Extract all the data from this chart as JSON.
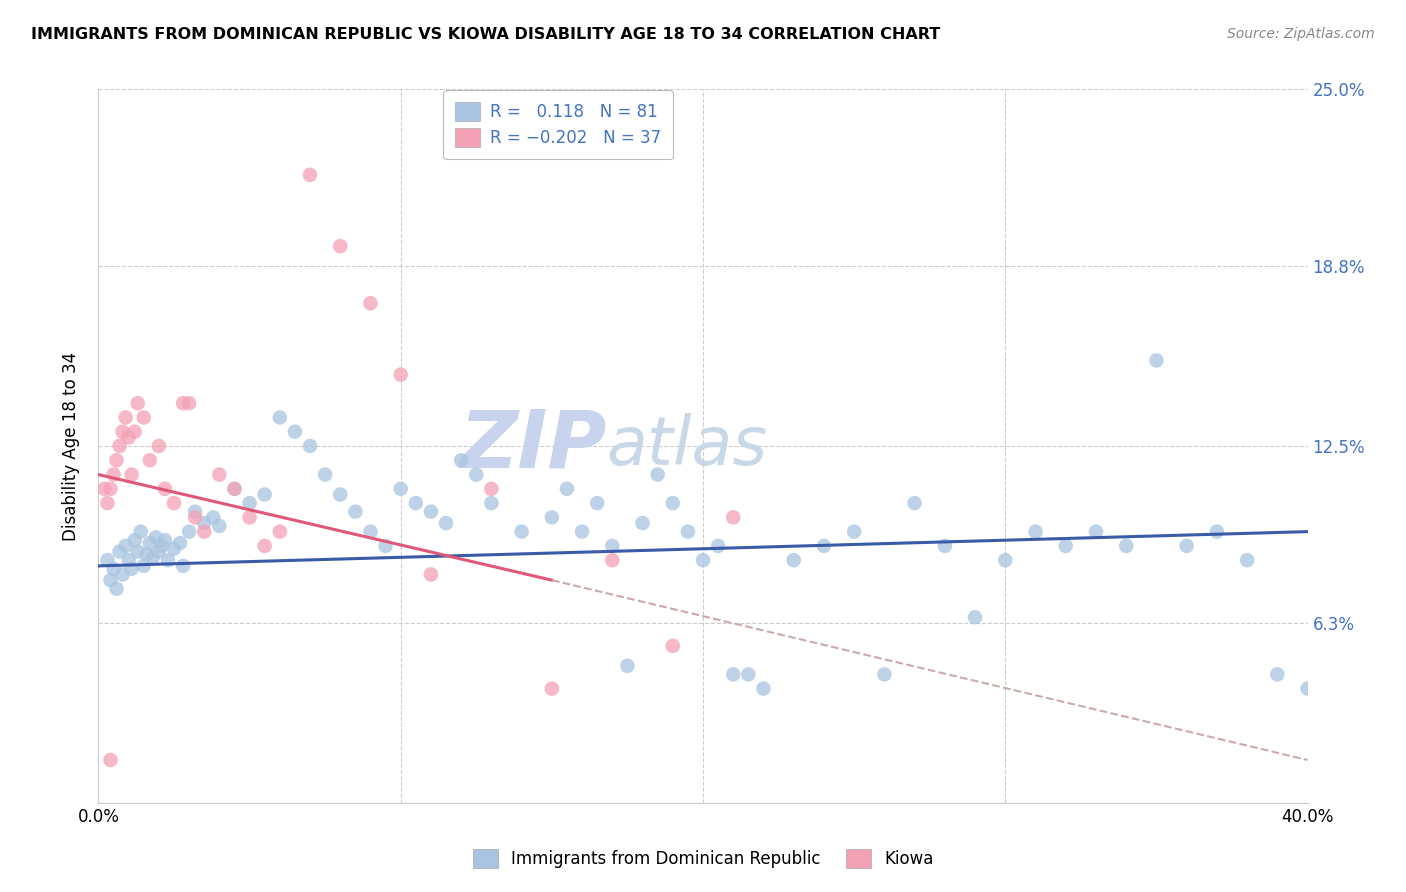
{
  "title": "IMMIGRANTS FROM DOMINICAN REPUBLIC VS KIOWA DISABILITY AGE 18 TO 34 CORRELATION CHART",
  "source": "Source: ZipAtlas.com",
  "ylabel": "Disability Age 18 to 34",
  "ytick_values": [
    0.0,
    6.3,
    12.5,
    18.8,
    25.0
  ],
  "ytick_labels": [
    "",
    "6.3%",
    "12.5%",
    "18.8%",
    "25.0%"
  ],
  "xmin": 0.0,
  "xmax": 40.0,
  "ymin": 0.0,
  "ymax": 25.0,
  "blue_R": 0.118,
  "blue_N": 81,
  "pink_R": -0.202,
  "pink_N": 37,
  "blue_color": "#a8c4e0",
  "pink_color": "#f4a0b5",
  "blue_line_color": "#3a5ca8",
  "pink_line_color": "#e05878",
  "dash_line_color": "#ccaaaa",
  "watermark_zip": "ZIP",
  "watermark_atlas": "atlas",
  "watermark_color": "#d0d8ee",
  "legend_label_blue": "Immigrants from Dominican Republic",
  "legend_label_pink": "Kiowa",
  "blue_x": [
    0.3,
    0.4,
    0.5,
    0.6,
    0.7,
    0.8,
    0.9,
    1.0,
    1.1,
    1.2,
    1.3,
    1.4,
    1.5,
    1.6,
    1.7,
    1.8,
    1.9,
    2.0,
    2.1,
    2.2,
    2.3,
    2.5,
    2.7,
    2.8,
    3.0,
    3.2,
    3.5,
    3.8,
    4.0,
    4.5,
    5.0,
    5.5,
    6.0,
    6.5,
    7.0,
    7.5,
    8.0,
    8.5,
    9.0,
    9.5,
    10.0,
    10.5,
    11.0,
    11.5,
    12.0,
    12.5,
    13.0,
    14.0,
    15.0,
    16.0,
    17.0,
    18.0,
    19.0,
    20.0,
    21.0,
    22.0,
    23.0,
    24.0,
    25.0,
    26.0,
    27.0,
    28.0,
    29.0,
    30.0,
    31.0,
    32.0,
    33.0,
    34.0,
    35.0,
    36.0,
    37.0,
    38.0,
    39.0,
    40.0,
    15.5,
    16.5,
    17.5,
    18.5,
    19.5,
    20.5,
    21.5
  ],
  "blue_y": [
    8.5,
    7.8,
    8.2,
    7.5,
    8.8,
    8.0,
    9.0,
    8.5,
    8.2,
    9.2,
    8.8,
    9.5,
    8.3,
    8.7,
    9.1,
    8.6,
    9.3,
    8.8,
    9.0,
    9.2,
    8.5,
    8.9,
    9.1,
    8.3,
    9.5,
    10.2,
    9.8,
    10.0,
    9.7,
    11.0,
    10.5,
    10.8,
    13.5,
    13.0,
    12.5,
    11.5,
    10.8,
    10.2,
    9.5,
    9.0,
    11.0,
    10.5,
    10.2,
    9.8,
    12.0,
    11.5,
    10.5,
    9.5,
    10.0,
    9.5,
    9.0,
    9.8,
    10.5,
    8.5,
    4.5,
    4.0,
    8.5,
    9.0,
    9.5,
    4.5,
    10.5,
    9.0,
    6.5,
    8.5,
    9.5,
    9.0,
    9.5,
    9.0,
    15.5,
    9.0,
    9.5,
    8.5,
    4.5,
    4.0,
    11.0,
    10.5,
    4.8,
    11.5,
    9.5,
    9.0,
    4.5
  ],
  "pink_x": [
    0.2,
    0.3,
    0.4,
    0.5,
    0.6,
    0.7,
    0.8,
    0.9,
    1.0,
    1.1,
    1.2,
    1.3,
    1.5,
    1.7,
    2.0,
    2.2,
    2.5,
    2.8,
    3.0,
    3.2,
    3.5,
    4.0,
    4.5,
    5.0,
    5.5,
    6.0,
    7.0,
    8.0,
    9.0,
    10.0,
    11.0,
    13.0,
    15.0,
    17.0,
    19.0,
    21.0,
    0.4
  ],
  "pink_y": [
    11.0,
    10.5,
    11.0,
    11.5,
    12.0,
    12.5,
    13.0,
    13.5,
    12.8,
    11.5,
    13.0,
    14.0,
    13.5,
    12.0,
    12.5,
    11.0,
    10.5,
    14.0,
    14.0,
    10.0,
    9.5,
    11.5,
    11.0,
    10.0,
    9.0,
    9.5,
    22.0,
    19.5,
    17.5,
    15.0,
    8.0,
    11.0,
    4.0,
    8.5,
    5.5,
    10.0,
    1.5
  ],
  "blue_trend_x0": 0.0,
  "blue_trend_x1": 40.0,
  "blue_trend_y0": 8.3,
  "blue_trend_y1": 9.5,
  "pink_solid_x0": 0.0,
  "pink_solid_x1": 15.0,
  "pink_solid_y0": 11.5,
  "pink_solid_y1": 7.8,
  "pink_dash_x0": 15.0,
  "pink_dash_x1": 40.0,
  "pink_dash_y0": 7.8,
  "pink_dash_y1": 1.5
}
